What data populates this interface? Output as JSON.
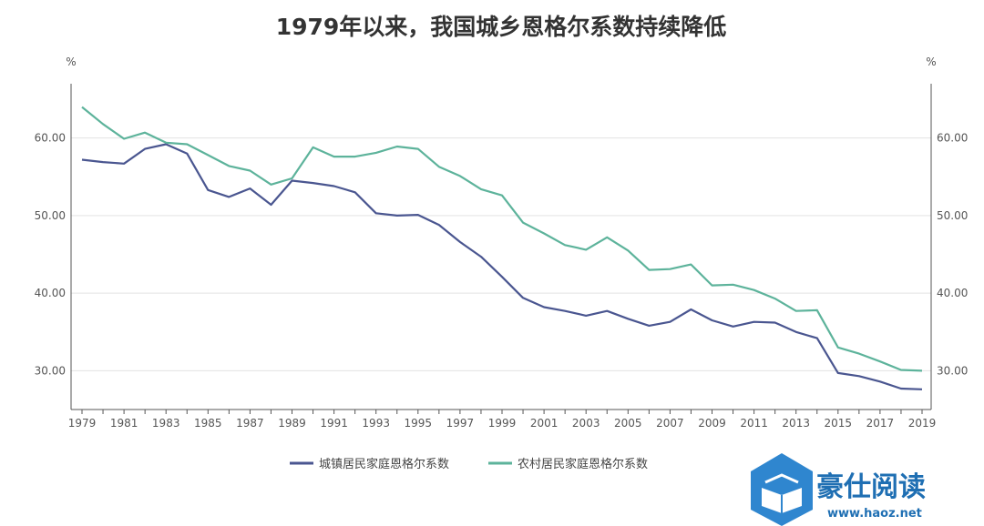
{
  "chart_data": {
    "type": "line",
    "title": "1979年以来，我国城乡恩格尔系数持续降低",
    "y_unit_left": "%",
    "y_unit_right": "%",
    "ylim": [
      25,
      67
    ],
    "yticks": [
      "30.00",
      "40.00",
      "50.00",
      "60.00"
    ],
    "xticks": [
      "1979",
      "1981",
      "1983",
      "1985",
      "1987",
      "1989",
      "1991",
      "1993",
      "1995",
      "1997",
      "1999",
      "2001",
      "2003",
      "2005",
      "2007",
      "2009",
      "2011",
      "2013",
      "2015",
      "2017",
      "2019"
    ],
    "x": [
      1979,
      1980,
      1981,
      1982,
      1983,
      1984,
      1985,
      1986,
      1987,
      1988,
      1989,
      1990,
      1991,
      1992,
      1993,
      1994,
      1995,
      1996,
      1997,
      1998,
      1999,
      2000,
      2001,
      2002,
      2003,
      2004,
      2005,
      2006,
      2007,
      2008,
      2009,
      2010,
      2011,
      2012,
      2013,
      2014,
      2015,
      2016,
      2017,
      2018,
      2019
    ],
    "grid": true,
    "legend_position": "bottom",
    "series": [
      {
        "name": "城镇居民家庭恩格尔系数",
        "color": "#4a5690",
        "values": [
          57.2,
          56.9,
          56.7,
          58.6,
          59.2,
          58.0,
          53.3,
          52.4,
          53.5,
          51.4,
          54.5,
          54.2,
          53.8,
          53.0,
          50.3,
          50.0,
          50.1,
          48.8,
          46.6,
          44.7,
          42.1,
          39.4,
          38.2,
          37.7,
          37.1,
          37.7,
          36.7,
          35.8,
          36.3,
          37.9,
          36.5,
          35.7,
          36.3,
          36.2,
          35.0,
          34.2,
          29.7,
          29.3,
          28.6,
          27.7,
          27.6
        ]
      },
      {
        "name": "农村居民家庭恩格尔系数",
        "color": "#5db39b",
        "values": [
          64.0,
          61.8,
          59.9,
          60.7,
          59.4,
          59.2,
          57.8,
          56.4,
          55.8,
          54.0,
          54.8,
          58.8,
          57.6,
          57.6,
          58.1,
          58.9,
          58.6,
          56.3,
          55.1,
          53.4,
          52.6,
          49.1,
          47.7,
          46.2,
          45.6,
          47.2,
          45.5,
          43.0,
          43.1,
          43.7,
          41.0,
          41.1,
          40.4,
          39.3,
          37.7,
          37.8,
          33.0,
          32.2,
          31.2,
          30.1,
          30.0
        ]
      }
    ]
  },
  "watermark": {
    "brand": "豪仕阅读",
    "url": "www.haoz.net",
    "icon": "book-logo-icon"
  }
}
